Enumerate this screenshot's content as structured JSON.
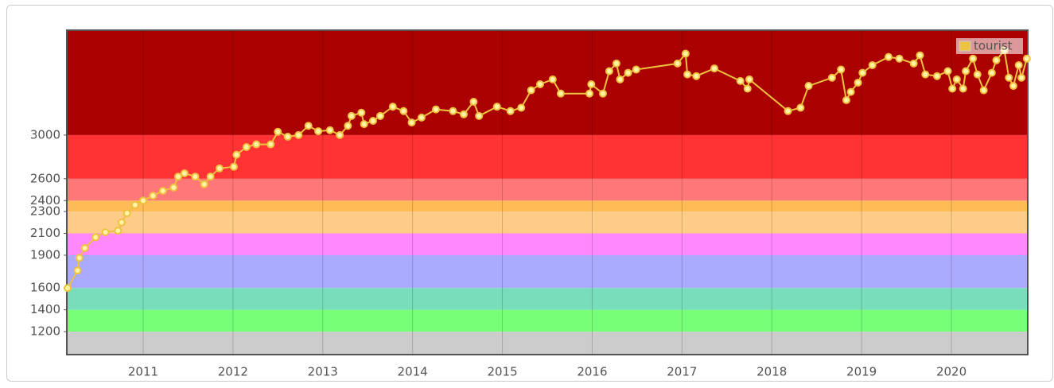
{
  "chart_data": {
    "type": "line",
    "legend_position": "top-right",
    "grid": true,
    "xlim": [
      2010.15,
      2020.85
    ],
    "xticks": [
      2011,
      2012,
      2013,
      2014,
      2015,
      2016,
      2017,
      2018,
      2019,
      2020
    ],
    "ylim": [
      990,
      3960
    ],
    "yticks": [
      1200,
      1400,
      1600,
      1900,
      2100,
      2300,
      2400,
      2600,
      3000
    ],
    "band_colors": [
      "#cccccc",
      "#77ff77",
      "#77ddbb",
      "#aaaaff",
      "#ff88ff",
      "#ffcc88",
      "#ffbb55",
      "#ff7777",
      "#ff3333",
      "#aa0000"
    ],
    "series": [
      {
        "name": "tourist",
        "color": "#edc240",
        "x": [
          2010.16,
          2010.27,
          2010.29,
          2010.35,
          2010.47,
          2010.58,
          2010.72,
          2010.76,
          2010.82,
          2010.91,
          2011.0,
          2011.11,
          2011.22,
          2011.34,
          2011.39,
          2011.46,
          2011.58,
          2011.68,
          2011.75,
          2011.85,
          2012.01,
          2012.04,
          2012.15,
          2012.26,
          2012.42,
          2012.5,
          2012.61,
          2012.73,
          2012.84,
          2012.95,
          2013.08,
          2013.19,
          2013.28,
          2013.32,
          2013.43,
          2013.46,
          2013.56,
          2013.64,
          2013.78,
          2013.9,
          2013.99,
          2014.1,
          2014.26,
          2014.45,
          2014.57,
          2014.68,
          2014.74,
          2014.94,
          2015.09,
          2015.21,
          2015.32,
          2015.42,
          2015.56,
          2015.65,
          2015.97,
          2015.99,
          2016.12,
          2016.19,
          2016.27,
          2016.31,
          2016.4,
          2016.49,
          2016.95,
          2017.04,
          2017.06,
          2017.16,
          2017.36,
          2017.65,
          2017.73,
          2017.75,
          2018.18,
          2018.32,
          2018.41,
          2018.67,
          2018.77,
          2018.83,
          2018.88,
          2018.96,
          2019.01,
          2019.12,
          2019.3,
          2019.42,
          2019.58,
          2019.65,
          2019.71,
          2019.84,
          2019.96,
          2020.01,
          2020.06,
          2020.13,
          2020.16,
          2020.24,
          2020.29,
          2020.36,
          2020.45,
          2020.5,
          2020.59,
          2020.64,
          2020.69,
          2020.75,
          2020.78,
          2020.84
        ],
        "values": [
          1600,
          1760,
          1875,
          1965,
          2065,
          2110,
          2125,
          2200,
          2285,
          2360,
          2400,
          2445,
          2490,
          2520,
          2620,
          2650,
          2620,
          2550,
          2620,
          2695,
          2710,
          2820,
          2890,
          2915,
          2915,
          3030,
          2985,
          3000,
          3085,
          3035,
          3045,
          3000,
          3085,
          3175,
          3205,
          3100,
          3130,
          3175,
          3260,
          3220,
          3115,
          3160,
          3235,
          3220,
          3190,
          3305,
          3175,
          3260,
          3220,
          3250,
          3410,
          3465,
          3510,
          3380,
          3380,
          3465,
          3380,
          3585,
          3655,
          3510,
          3570,
          3600,
          3655,
          3745,
          3555,
          3540,
          3610,
          3495,
          3425,
          3510,
          3220,
          3250,
          3450,
          3525,
          3600,
          3320,
          3395,
          3480,
          3570,
          3640,
          3715,
          3700,
          3655,
          3730,
          3555,
          3540,
          3585,
          3425,
          3510,
          3425,
          3585,
          3700,
          3555,
          3410,
          3570,
          3685,
          3775,
          3525,
          3450,
          3640,
          3525,
          3700
        ]
      }
    ]
  }
}
